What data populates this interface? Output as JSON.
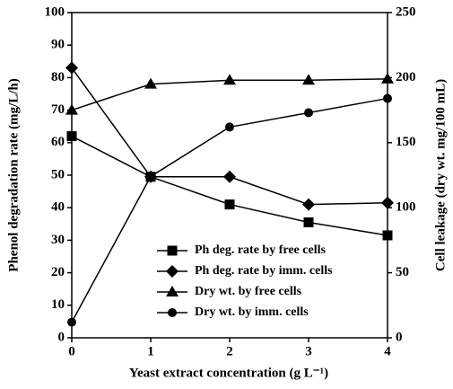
{
  "chart_data": {
    "type": "line",
    "xlabel": "Yeast extract concentration (g L⁻¹)",
    "ylabel": "Phenol degradation rate (mg/L/h)",
    "y2label": "Cell leakage (dry wt. mg/100 mL)",
    "x": [
      0,
      1,
      2,
      3,
      4
    ],
    "xlim": [
      0,
      4
    ],
    "xticks": [
      0,
      1,
      2,
      3,
      4
    ],
    "ylim": [
      0,
      100
    ],
    "yticks": [
      0,
      10,
      20,
      30,
      40,
      50,
      60,
      70,
      80,
      90,
      100
    ],
    "y2lim": [
      0,
      250
    ],
    "y2ticks": [
      0,
      50,
      100,
      150,
      200,
      250
    ],
    "legend": "lower right",
    "series": [
      {
        "name": "Ph deg. rate by free cells",
        "color": "#000000",
        "marker": "square",
        "values": [
          62,
          49.5,
          41,
          35.5,
          31.5
        ]
      },
      {
        "name": "Ph deg. rate by imm. cells",
        "color": "#000000",
        "marker": "diamond",
        "values": [
          83,
          49.5,
          49.5,
          41,
          41.5
        ]
      },
      {
        "name": "Dry wt. by free cells",
        "color": "#000000",
        "marker": "triangle",
        "axis": "y2",
        "values": [
          175,
          195,
          198,
          198,
          199
        ]
      },
      {
        "name": "Dry wt. by imm. cells",
        "color": "#000000",
        "marker": "circle",
        "axis": "y2",
        "values": [
          12,
          124,
          162,
          173,
          184
        ]
      }
    ]
  }
}
